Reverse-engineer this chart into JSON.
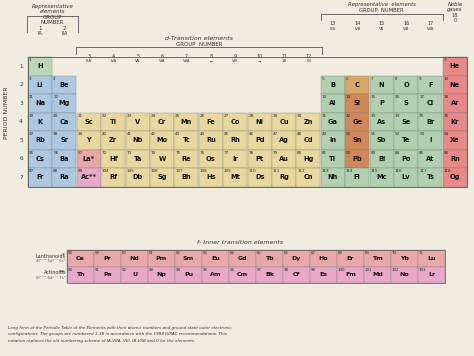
{
  "bg_color": "#f0ece0",
  "footer": "Long form of the Periodic Table of the Elements with their atomic numbers and ground state outer electronic\nconfigurations. The groups are numbered 1-18 in accordance with the 1984 IUPAC recommendations. This\nnotation replaces the old numbering scheme of IA-VIIA, VIII, IB-VIIB and 0 for the elements.",
  "colors": {
    "s_left": "#aec8e0",
    "s_h": "#b8d8b8",
    "p_block": "#b0d0b0",
    "d_block": "#e8d8a0",
    "f_lant": "#e8a8a8",
    "f_acti": "#e8a8c8",
    "noble": "#e88888",
    "si_type": "#d08858",
    "c_type": "#d8a868"
  },
  "main_elements": [
    {
      "num": 1,
      "sym": "H",
      "row": 1,
      "col": 1,
      "color": "#b8d8b8"
    },
    {
      "num": 2,
      "sym": "He",
      "row": 1,
      "col": 18,
      "color": "#e88888"
    },
    {
      "num": 3,
      "sym": "Li",
      "row": 2,
      "col": 1,
      "color": "#aec8e0"
    },
    {
      "num": 4,
      "sym": "Be",
      "row": 2,
      "col": 2,
      "color": "#aec8e0"
    },
    {
      "num": 5,
      "sym": "B",
      "row": 2,
      "col": 13,
      "color": "#b0d0b0"
    },
    {
      "num": 6,
      "sym": "C",
      "row": 2,
      "col": 14,
      "color": "#d8a868"
    },
    {
      "num": 7,
      "sym": "N",
      "row": 2,
      "col": 15,
      "color": "#b0d0b0"
    },
    {
      "num": 8,
      "sym": "O",
      "row": 2,
      "col": 16,
      "color": "#b0d0b0"
    },
    {
      "num": 9,
      "sym": "F",
      "row": 2,
      "col": 17,
      "color": "#b0d0b0"
    },
    {
      "num": 10,
      "sym": "Ne",
      "row": 2,
      "col": 18,
      "color": "#e88888"
    },
    {
      "num": 11,
      "sym": "Na",
      "row": 3,
      "col": 1,
      "color": "#aec8e0"
    },
    {
      "num": 12,
      "sym": "Mg",
      "row": 3,
      "col": 2,
      "color": "#aec8e0"
    },
    {
      "num": 13,
      "sym": "Al",
      "row": 3,
      "col": 13,
      "color": "#b0d0b0"
    },
    {
      "num": 14,
      "sym": "Si",
      "row": 3,
      "col": 14,
      "color": "#d08858"
    },
    {
      "num": 15,
      "sym": "P",
      "row": 3,
      "col": 15,
      "color": "#b0d0b0"
    },
    {
      "num": 16,
      "sym": "S",
      "row": 3,
      "col": 16,
      "color": "#b0d0b0"
    },
    {
      "num": 17,
      "sym": "Cl",
      "row": 3,
      "col": 17,
      "color": "#b0d0b0"
    },
    {
      "num": 18,
      "sym": "Ar",
      "row": 3,
      "col": 18,
      "color": "#e88888"
    },
    {
      "num": 19,
      "sym": "K",
      "row": 4,
      "col": 1,
      "color": "#aec8e0"
    },
    {
      "num": 20,
      "sym": "Ca",
      "row": 4,
      "col": 2,
      "color": "#aec8e0"
    },
    {
      "num": 21,
      "sym": "Sc",
      "row": 4,
      "col": 3,
      "color": "#e8d8a0"
    },
    {
      "num": 22,
      "sym": "Ti",
      "row": 4,
      "col": 4,
      "color": "#e8d8a0"
    },
    {
      "num": 23,
      "sym": "V",
      "row": 4,
      "col": 5,
      "color": "#e8d8a0"
    },
    {
      "num": 24,
      "sym": "Cr",
      "row": 4,
      "col": 6,
      "color": "#e8d8a0"
    },
    {
      "num": 25,
      "sym": "Mn",
      "row": 4,
      "col": 7,
      "color": "#e8d8a0"
    },
    {
      "num": 26,
      "sym": "Fe",
      "row": 4,
      "col": 8,
      "color": "#e8d8a0"
    },
    {
      "num": 27,
      "sym": "Co",
      "row": 4,
      "col": 9,
      "color": "#e8d8a0"
    },
    {
      "num": 28,
      "sym": "Ni",
      "row": 4,
      "col": 10,
      "color": "#e8d8a0"
    },
    {
      "num": 29,
      "sym": "Cu",
      "row": 4,
      "col": 11,
      "color": "#e8d8a0"
    },
    {
      "num": 30,
      "sym": "Zn",
      "row": 4,
      "col": 12,
      "color": "#e8d8a0"
    },
    {
      "num": 31,
      "sym": "Ga",
      "row": 4,
      "col": 13,
      "color": "#b0d0b0"
    },
    {
      "num": 32,
      "sym": "Ge",
      "row": 4,
      "col": 14,
      "color": "#d08858"
    },
    {
      "num": 33,
      "sym": "As",
      "row": 4,
      "col": 15,
      "color": "#b0d0b0"
    },
    {
      "num": 34,
      "sym": "Se",
      "row": 4,
      "col": 16,
      "color": "#b0d0b0"
    },
    {
      "num": 35,
      "sym": "Br",
      "row": 4,
      "col": 17,
      "color": "#b0d0b0"
    },
    {
      "num": 36,
      "sym": "Kr",
      "row": 4,
      "col": 18,
      "color": "#e88888"
    },
    {
      "num": 37,
      "sym": "Rb",
      "row": 5,
      "col": 1,
      "color": "#aec8e0"
    },
    {
      "num": 38,
      "sym": "Sr",
      "row": 5,
      "col": 2,
      "color": "#aec8e0"
    },
    {
      "num": 39,
      "sym": "Y",
      "row": 5,
      "col": 3,
      "color": "#e8d8a0"
    },
    {
      "num": 40,
      "sym": "Zr",
      "row": 5,
      "col": 4,
      "color": "#e8d8a0"
    },
    {
      "num": 41,
      "sym": "Nb",
      "row": 5,
      "col": 5,
      "color": "#e8d8a0"
    },
    {
      "num": 42,
      "sym": "Mo",
      "row": 5,
      "col": 6,
      "color": "#e8d8a0"
    },
    {
      "num": 43,
      "sym": "Tc",
      "row": 5,
      "col": 7,
      "color": "#e8d8a0"
    },
    {
      "num": 44,
      "sym": "Ru",
      "row": 5,
      "col": 8,
      "color": "#e8d8a0"
    },
    {
      "num": 45,
      "sym": "Rh",
      "row": 5,
      "col": 9,
      "color": "#e8d8a0"
    },
    {
      "num": 46,
      "sym": "Pd",
      "row": 5,
      "col": 10,
      "color": "#e8d8a0"
    },
    {
      "num": 47,
      "sym": "Ag",
      "row": 5,
      "col": 11,
      "color": "#e8d8a0"
    },
    {
      "num": 48,
      "sym": "Cd",
      "row": 5,
      "col": 12,
      "color": "#e8d8a0"
    },
    {
      "num": 49,
      "sym": "In",
      "row": 5,
      "col": 13,
      "color": "#b0d0b0"
    },
    {
      "num": 50,
      "sym": "Sn",
      "row": 5,
      "col": 14,
      "color": "#d08858"
    },
    {
      "num": 51,
      "sym": "Sb",
      "row": 5,
      "col": 15,
      "color": "#b0d0b0"
    },
    {
      "num": 52,
      "sym": "Te",
      "row": 5,
      "col": 16,
      "color": "#b0d0b0"
    },
    {
      "num": 53,
      "sym": "I",
      "row": 5,
      "col": 17,
      "color": "#b0d0b0"
    },
    {
      "num": 54,
      "sym": "Xe",
      "row": 5,
      "col": 18,
      "color": "#e88888"
    },
    {
      "num": 55,
      "sym": "Cs",
      "row": 6,
      "col": 1,
      "color": "#aec8e0"
    },
    {
      "num": 56,
      "sym": "Ba",
      "row": 6,
      "col": 2,
      "color": "#aec8e0"
    },
    {
      "num": 57,
      "sym": "La*",
      "row": 6,
      "col": 3,
      "color": "#e8a8a8"
    },
    {
      "num": 72,
      "sym": "Hf",
      "row": 6,
      "col": 4,
      "color": "#e8d8a0"
    },
    {
      "num": 73,
      "sym": "Ta",
      "row": 6,
      "col": 5,
      "color": "#e8d8a0"
    },
    {
      "num": 74,
      "sym": "W",
      "row": 6,
      "col": 6,
      "color": "#e8d8a0"
    },
    {
      "num": 75,
      "sym": "Re",
      "row": 6,
      "col": 7,
      "color": "#e8d8a0"
    },
    {
      "num": 76,
      "sym": "Os",
      "row": 6,
      "col": 8,
      "color": "#e8d8a0"
    },
    {
      "num": 77,
      "sym": "Ir",
      "row": 6,
      "col": 9,
      "color": "#e8d8a0"
    },
    {
      "num": 78,
      "sym": "Pt",
      "row": 6,
      "col": 10,
      "color": "#e8d8a0"
    },
    {
      "num": 79,
      "sym": "Au",
      "row": 6,
      "col": 11,
      "color": "#e8d8a0"
    },
    {
      "num": 80,
      "sym": "Hg",
      "row": 6,
      "col": 12,
      "color": "#e8d8a0"
    },
    {
      "num": 81,
      "sym": "Tl",
      "row": 6,
      "col": 13,
      "color": "#b0d0b0"
    },
    {
      "num": 82,
      "sym": "Pb",
      "row": 6,
      "col": 14,
      "color": "#d08858"
    },
    {
      "num": 83,
      "sym": "Bi",
      "row": 6,
      "col": 15,
      "color": "#b0d0b0"
    },
    {
      "num": 84,
      "sym": "Po",
      "row": 6,
      "col": 16,
      "color": "#b0d0b0"
    },
    {
      "num": 85,
      "sym": "At",
      "row": 6,
      "col": 17,
      "color": "#b0d0b0"
    },
    {
      "num": 86,
      "sym": "Rn",
      "row": 6,
      "col": 18,
      "color": "#e88888"
    },
    {
      "num": 87,
      "sym": "Fr",
      "row": 7,
      "col": 1,
      "color": "#aec8e0"
    },
    {
      "num": 88,
      "sym": "Ra",
      "row": 7,
      "col": 2,
      "color": "#aec8e0"
    },
    {
      "num": 89,
      "sym": "Ac**",
      "row": 7,
      "col": 3,
      "color": "#e8a8c8"
    },
    {
      "num": 104,
      "sym": "Rf",
      "row": 7,
      "col": 4,
      "color": "#e8d8a0"
    },
    {
      "num": 105,
      "sym": "Db",
      "row": 7,
      "col": 5,
      "color": "#e8d8a0"
    },
    {
      "num": 106,
      "sym": "Sg",
      "row": 7,
      "col": 6,
      "color": "#e8d8a0"
    },
    {
      "num": 107,
      "sym": "Bh",
      "row": 7,
      "col": 7,
      "color": "#e8d8a0"
    },
    {
      "num": 108,
      "sym": "Hs",
      "row": 7,
      "col": 8,
      "color": "#e8d8a0"
    },
    {
      "num": 109,
      "sym": "Mt",
      "row": 7,
      "col": 9,
      "color": "#e8d8a0"
    },
    {
      "num": 110,
      "sym": "Ds",
      "row": 7,
      "col": 10,
      "color": "#e8d8a0"
    },
    {
      "num": 111,
      "sym": "Rg",
      "row": 7,
      "col": 11,
      "color": "#e8d8a0"
    },
    {
      "num": 112,
      "sym": "Cn",
      "row": 7,
      "col": 12,
      "color": "#e8d8a0"
    },
    {
      "num": 113,
      "sym": "Nh",
      "row": 7,
      "col": 13,
      "color": "#b0d0b0"
    },
    {
      "num": 114,
      "sym": "Fl",
      "row": 7,
      "col": 14,
      "color": "#b0d0b0"
    },
    {
      "num": 115,
      "sym": "Mc",
      "row": 7,
      "col": 15,
      "color": "#b0d0b0"
    },
    {
      "num": 116,
      "sym": "Lv",
      "row": 7,
      "col": 16,
      "color": "#b0d0b0"
    },
    {
      "num": 117,
      "sym": "Ts",
      "row": 7,
      "col": 17,
      "color": "#b0d0b0"
    },
    {
      "num": 118,
      "sym": "Og",
      "row": 7,
      "col": 18,
      "color": "#e88888"
    }
  ],
  "lanthanoids": [
    {
      "num": 58,
      "sym": "Ce"
    },
    {
      "num": 59,
      "sym": "Pr"
    },
    {
      "num": 60,
      "sym": "Nd"
    },
    {
      "num": 61,
      "sym": "Pm"
    },
    {
      "num": 62,
      "sym": "Sm"
    },
    {
      "num": 63,
      "sym": "Eu"
    },
    {
      "num": 64,
      "sym": "Gd"
    },
    {
      "num": 65,
      "sym": "Tb"
    },
    {
      "num": 66,
      "sym": "Dy"
    },
    {
      "num": 67,
      "sym": "Ho"
    },
    {
      "num": 68,
      "sym": "Er"
    },
    {
      "num": 69,
      "sym": "Tm"
    },
    {
      "num": 70,
      "sym": "Yb"
    },
    {
      "num": 71,
      "sym": "Lu"
    }
  ],
  "actinoids": [
    {
      "num": 90,
      "sym": "Th"
    },
    {
      "num": 91,
      "sym": "Pa"
    },
    {
      "num": 92,
      "sym": "U"
    },
    {
      "num": 93,
      "sym": "Np"
    },
    {
      "num": 94,
      "sym": "Pu"
    },
    {
      "num": 95,
      "sym": "Am"
    },
    {
      "num": 96,
      "sym": "Cm"
    },
    {
      "num": 97,
      "sym": "Bk"
    },
    {
      "num": 98,
      "sym": "Cf"
    },
    {
      "num": 99,
      "sym": "Es"
    },
    {
      "num": 100,
      "sym": "Fm"
    },
    {
      "num": 101,
      "sym": "Md"
    },
    {
      "num": 102,
      "sym": "No"
    },
    {
      "num": 103,
      "sym": "Lr"
    }
  ]
}
